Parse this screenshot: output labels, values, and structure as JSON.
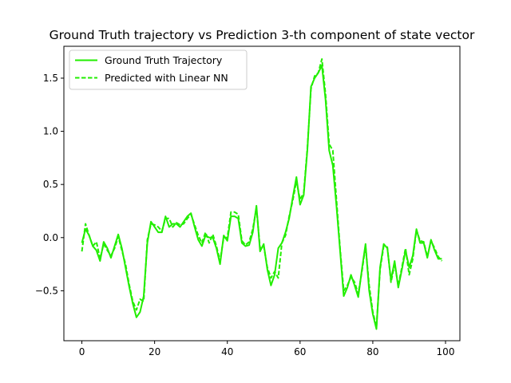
{
  "chart_data": {
    "type": "line",
    "title": "Ground Truth trajectory vs Prediction 3-th component of state vector",
    "xlabel": "",
    "ylabel": "",
    "xlim": [
      -4.95,
      103.95
    ],
    "ylim": [
      -0.97,
      1.8
    ],
    "xticks": [
      0,
      20,
      40,
      60,
      80,
      100
    ],
    "yticks": [
      -0.5,
      0.0,
      0.5,
      1.0,
      1.5
    ],
    "xtick_labels": [
      "0",
      "20",
      "40",
      "60",
      "80",
      "100"
    ],
    "ytick_labels": [
      "−0.5",
      "0.0",
      "0.5",
      "1.0",
      "1.5"
    ],
    "grid": false,
    "legend_position": "upper-left",
    "series": [
      {
        "name": "Ground Truth Trajectory",
        "style": "solid",
        "color": "#22ee00",
        "x": [
          0,
          1,
          2,
          3,
          4,
          5,
          6,
          7,
          8,
          9,
          10,
          11,
          12,
          13,
          14,
          15,
          16,
          17,
          18,
          19,
          20,
          21,
          22,
          23,
          24,
          25,
          26,
          27,
          28,
          29,
          30,
          31,
          32,
          33,
          34,
          35,
          36,
          37,
          38,
          39,
          40,
          41,
          42,
          43,
          44,
          45,
          46,
          47,
          48,
          49,
          50,
          51,
          52,
          53,
          54,
          55,
          56,
          57,
          58,
          59,
          60,
          61,
          62,
          63,
          64,
          65,
          66,
          67,
          68,
          69,
          70,
          71,
          72,
          73,
          74,
          75,
          76,
          77,
          78,
          79,
          80,
          81,
          82,
          83,
          84,
          85,
          86,
          87,
          88,
          89,
          90,
          91,
          92,
          93,
          94,
          95,
          96,
          97,
          98,
          99
        ],
        "values": [
          -0.05,
          0.08,
          0.02,
          -0.08,
          -0.12,
          -0.22,
          -0.04,
          -0.1,
          -0.19,
          -0.08,
          0.03,
          -0.1,
          -0.28,
          -0.46,
          -0.62,
          -0.75,
          -0.7,
          -0.55,
          -0.05,
          0.15,
          0.1,
          0.05,
          0.05,
          0.2,
          0.1,
          0.13,
          0.13,
          0.1,
          0.15,
          0.2,
          0.23,
          0.1,
          -0.02,
          -0.08,
          0.02,
          0.0,
          0.0,
          -0.1,
          -0.25,
          0.02,
          -0.03,
          0.2,
          0.2,
          0.18,
          -0.05,
          -0.08,
          -0.07,
          0.05,
          0.3,
          -0.13,
          -0.06,
          -0.3,
          -0.45,
          -0.35,
          -0.1,
          -0.05,
          0.05,
          0.18,
          0.38,
          0.57,
          0.31,
          0.4,
          0.82,
          1.42,
          1.5,
          1.55,
          1.62,
          1.3,
          0.82,
          0.68,
          0.3,
          -0.12,
          -0.55,
          -0.47,
          -0.35,
          -0.45,
          -0.56,
          -0.3,
          -0.06,
          -0.5,
          -0.72,
          -0.86,
          -0.28,
          -0.06,
          -0.1,
          -0.4,
          -0.22,
          -0.47,
          -0.3,
          -0.12,
          -0.28,
          -0.17,
          0.08,
          -0.05,
          -0.05,
          -0.19,
          -0.02,
          -0.12,
          -0.2,
          -0.2
        ]
      },
      {
        "name": "Predicted with Linear NN",
        "style": "dashed",
        "color": "#22ee00",
        "x": [
          0,
          1,
          2,
          3,
          4,
          5,
          6,
          7,
          8,
          9,
          10,
          11,
          12,
          13,
          14,
          15,
          16,
          17,
          18,
          19,
          20,
          21,
          22,
          23,
          24,
          25,
          26,
          27,
          28,
          29,
          30,
          31,
          32,
          33,
          34,
          35,
          36,
          37,
          38,
          39,
          40,
          41,
          42,
          43,
          44,
          45,
          46,
          47,
          48,
          49,
          50,
          51,
          52,
          53,
          54,
          55,
          56,
          57,
          58,
          59,
          60,
          61,
          62,
          63,
          64,
          65,
          66,
          67,
          68,
          69,
          70,
          71,
          72,
          73,
          74,
          75,
          76,
          77,
          78,
          79,
          80,
          81,
          82,
          83,
          84,
          85,
          86,
          87,
          88,
          89,
          90,
          91,
          92,
          93,
          94,
          95,
          96,
          97,
          98,
          99
        ],
        "values": [
          -0.13,
          0.13,
          0.02,
          -0.08,
          -0.04,
          -0.2,
          -0.06,
          -0.12,
          -0.17,
          -0.1,
          0.01,
          -0.12,
          -0.25,
          -0.44,
          -0.6,
          -0.68,
          -0.58,
          -0.6,
          -0.02,
          0.13,
          0.12,
          0.1,
          0.06,
          0.18,
          0.18,
          0.1,
          0.14,
          0.12,
          0.13,
          0.18,
          0.22,
          0.12,
          0.02,
          -0.05,
          0.05,
          -0.05,
          0.03,
          -0.08,
          -0.22,
          0.0,
          0.0,
          0.24,
          0.24,
          0.22,
          -0.03,
          -0.07,
          -0.04,
          0.08,
          0.28,
          -0.1,
          -0.08,
          -0.28,
          -0.38,
          -0.32,
          -0.38,
          -0.05,
          0.02,
          0.2,
          0.35,
          0.53,
          0.36,
          0.42,
          0.84,
          1.4,
          1.52,
          1.55,
          1.68,
          1.35,
          0.88,
          0.82,
          0.36,
          -0.1,
          -0.5,
          -0.45,
          -0.37,
          -0.42,
          -0.53,
          -0.32,
          -0.08,
          -0.45,
          -0.7,
          -0.84,
          -0.3,
          -0.08,
          -0.09,
          -0.42,
          -0.25,
          -0.45,
          -0.28,
          -0.1,
          -0.35,
          -0.2,
          0.07,
          -0.03,
          -0.04,
          -0.18,
          -0.03,
          -0.1,
          -0.18,
          -0.22
        ]
      }
    ]
  },
  "colors": {
    "series": "#22ee00",
    "axes": "#000000",
    "background": "#ffffff"
  }
}
